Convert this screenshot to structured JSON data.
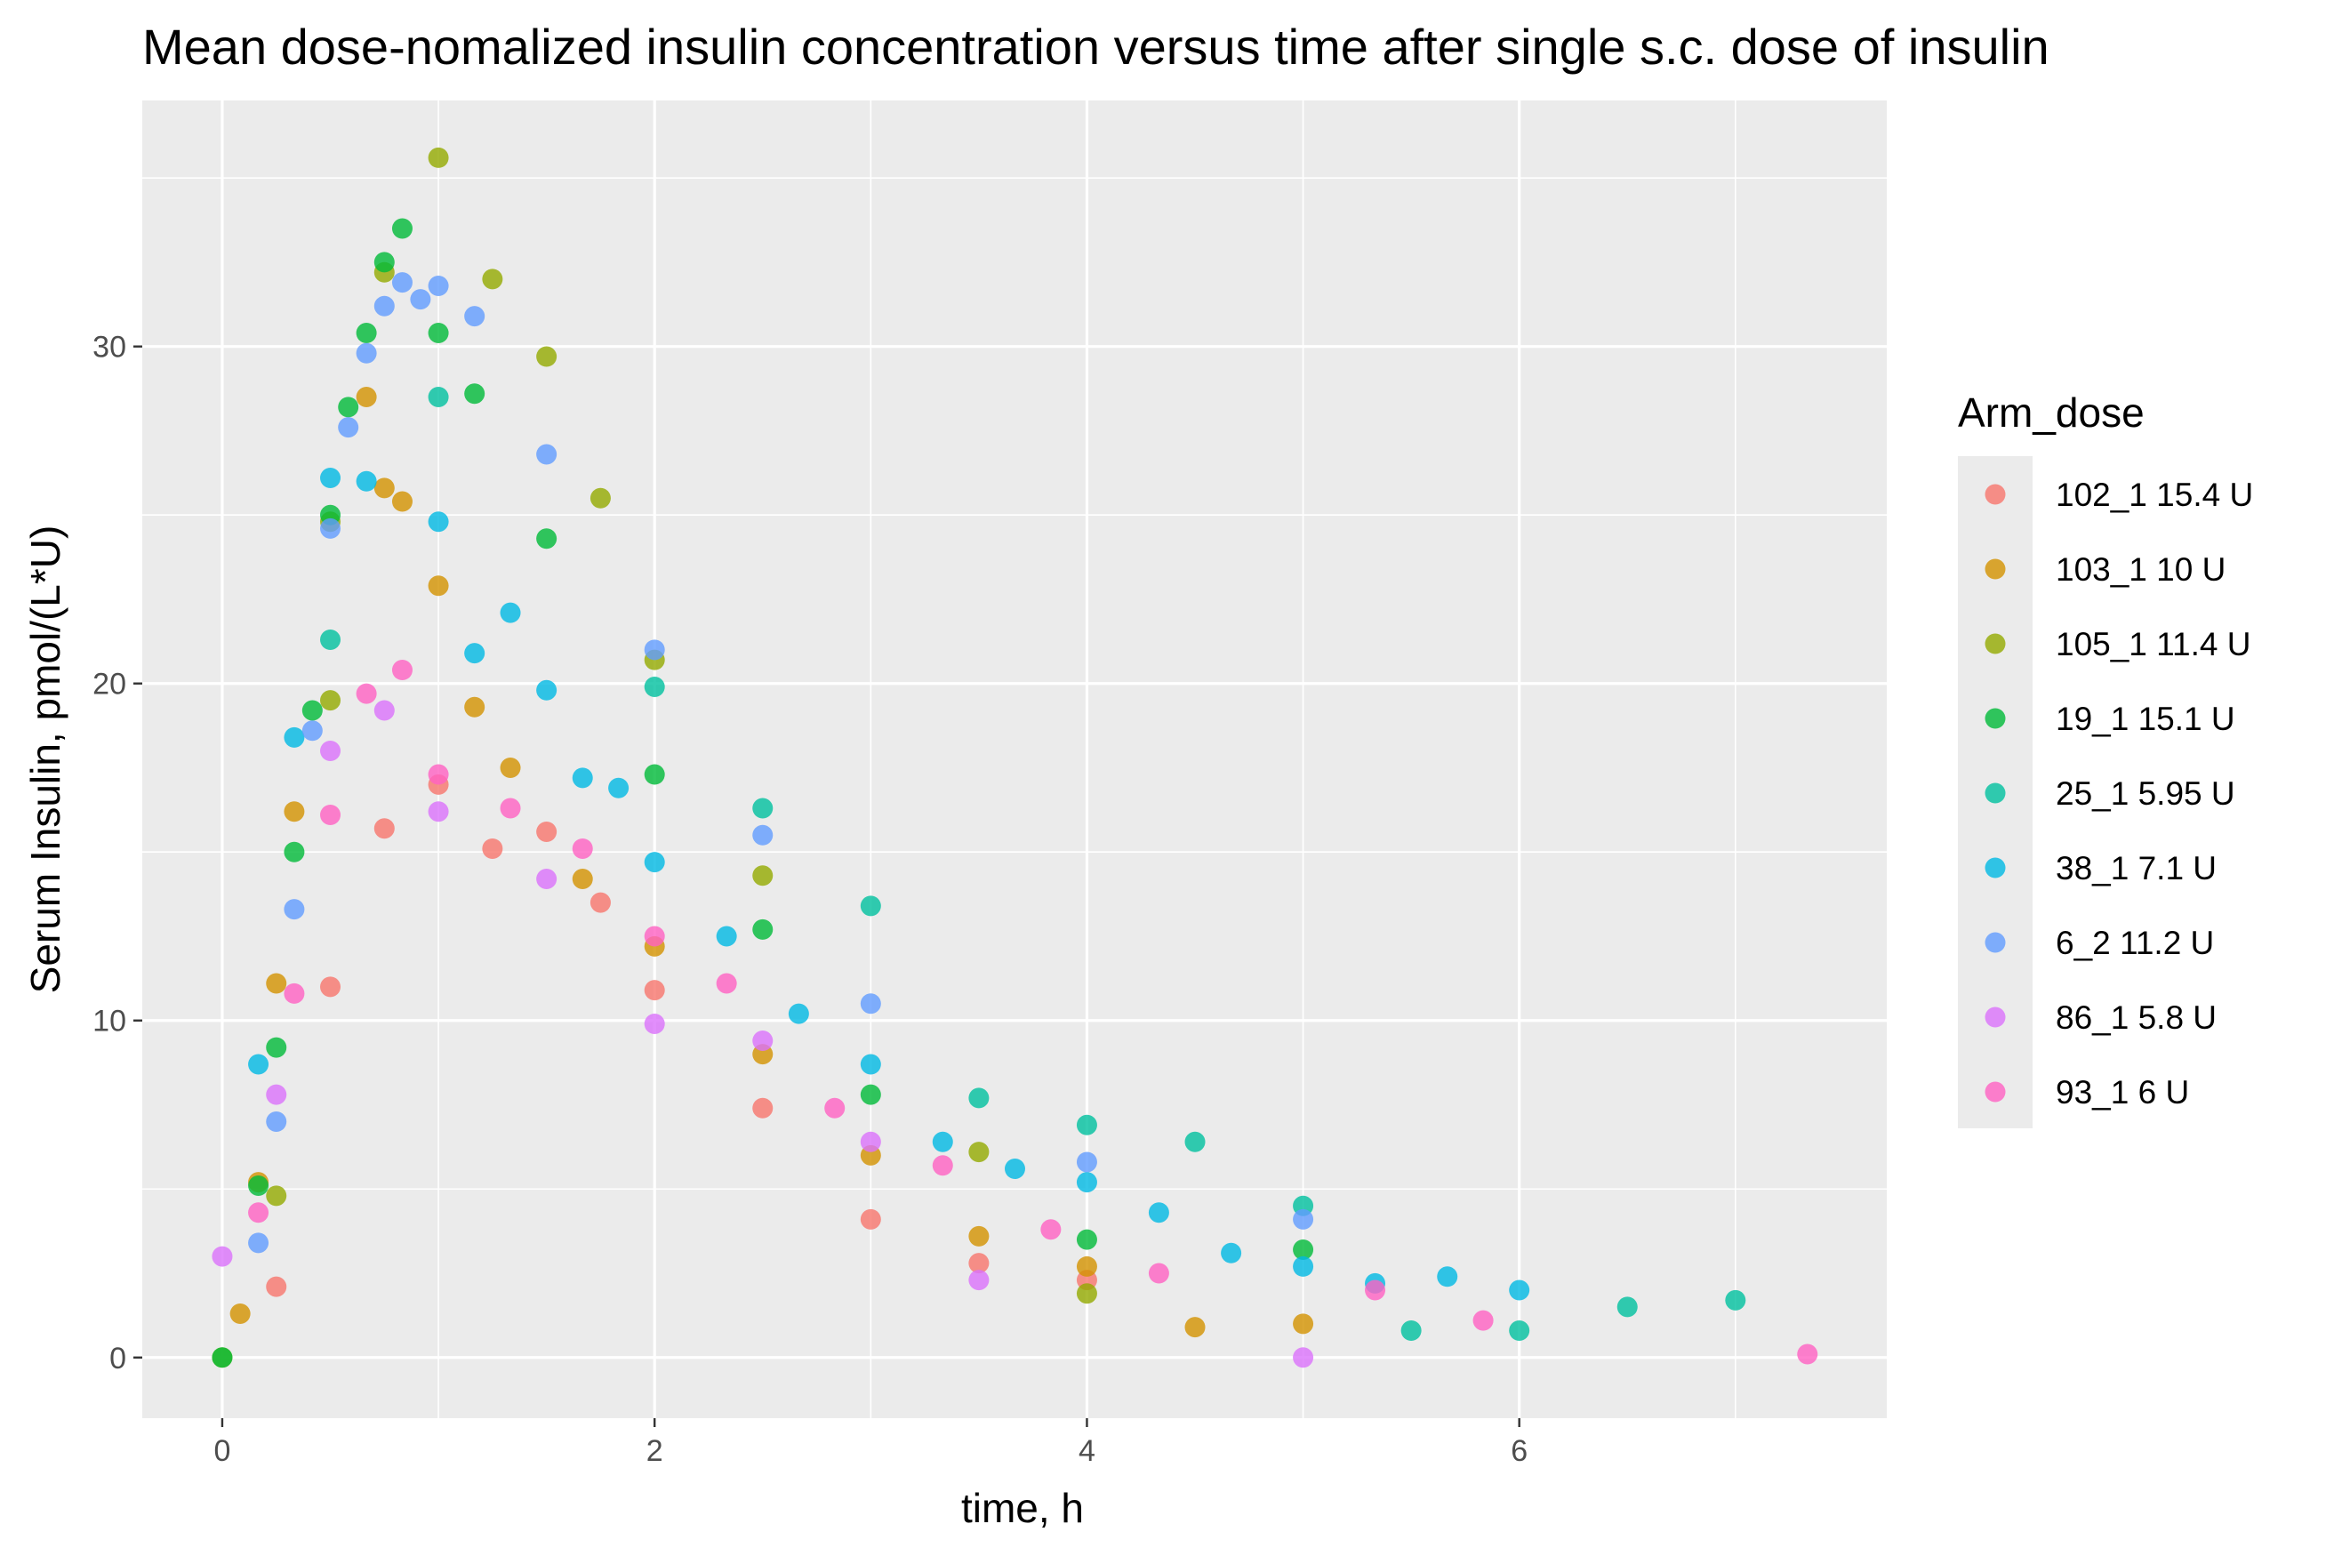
{
  "chart_data": {
    "type": "scatter",
    "title": "Mean dose-nomalized insulin concentration versus time after single s.c. dose of insulin",
    "xlabel": "time, h",
    "ylabel": "Serum Insulin, pmol/(L*U)",
    "xlim": [
      -0.37,
      7.7
    ],
    "ylim": [
      -1.8,
      37.3
    ],
    "x_ticks": [
      0,
      2,
      4,
      6
    ],
    "y_ticks": [
      0,
      10,
      20,
      30
    ],
    "x_tick_labels": [
      "0",
      "2",
      "4",
      "6"
    ],
    "y_tick_labels": [
      "0",
      "10",
      "20",
      "30"
    ],
    "grid": true,
    "legend_title": "Arm_dose",
    "legend_position": "right",
    "series": [
      {
        "name": "102_1 15.4 U",
        "color": "#F8766D",
        "points": [
          [
            0.25,
            2.1
          ],
          [
            0.5,
            11
          ],
          [
            0.75,
            15.7
          ],
          [
            1,
            17
          ],
          [
            1.25,
            15.1
          ],
          [
            1.5,
            15.6
          ],
          [
            1.75,
            13.5
          ],
          [
            2,
            10.9
          ],
          [
            2.5,
            7.4
          ],
          [
            3,
            4.1
          ],
          [
            3.5,
            2.8
          ],
          [
            4,
            2.3
          ]
        ]
      },
      {
        "name": "103_1 10 U",
        "color": "#D39200",
        "points": [
          [
            0.083,
            1.3
          ],
          [
            0.167,
            5.2
          ],
          [
            0.25,
            11.1
          ],
          [
            0.333,
            16.2
          ],
          [
            0.667,
            28.5
          ],
          [
            0.75,
            25.8
          ],
          [
            0.833,
            25.4
          ],
          [
            1,
            22.9
          ],
          [
            1.167,
            19.3
          ],
          [
            1.333,
            17.5
          ],
          [
            1.667,
            14.2
          ],
          [
            2,
            12.2
          ],
          [
            2.5,
            9
          ],
          [
            3,
            6
          ],
          [
            3.5,
            3.6
          ],
          [
            4,
            2.7
          ],
          [
            4.5,
            0.9
          ],
          [
            5,
            1
          ]
        ]
      },
      {
        "name": "105_1 11.4 U",
        "color": "#93AA00",
        "points": [
          [
            0,
            0
          ],
          [
            0.25,
            4.8
          ],
          [
            0.5,
            19.5
          ],
          [
            0.5,
            24.8
          ],
          [
            0.75,
            32.2
          ],
          [
            1,
            35.6
          ],
          [
            1.25,
            32
          ],
          [
            1.5,
            29.7
          ],
          [
            1.75,
            25.5
          ],
          [
            2,
            20.7
          ],
          [
            2.5,
            14.3
          ],
          [
            3.5,
            6.1
          ],
          [
            4,
            1.9
          ]
        ]
      },
      {
        "name": "19_1 15.1 U",
        "color": "#00BA38",
        "points": [
          [
            0,
            0
          ],
          [
            0.167,
            5.1
          ],
          [
            0.25,
            9.2
          ],
          [
            0.333,
            15
          ],
          [
            0.417,
            19.2
          ],
          [
            0.5,
            25
          ],
          [
            0.583,
            28.2
          ],
          [
            0.667,
            30.4
          ],
          [
            0.75,
            32.5
          ],
          [
            0.833,
            33.5
          ],
          [
            1,
            30.4
          ],
          [
            1.167,
            28.6
          ],
          [
            1.5,
            24.3
          ],
          [
            2,
            17.3
          ],
          [
            2.5,
            12.7
          ],
          [
            3,
            7.8
          ],
          [
            4,
            3.5
          ],
          [
            5,
            3.2
          ]
        ]
      },
      {
        "name": "25_1 5.95 U",
        "color": "#00C19F",
        "points": [
          [
            0.5,
            21.3
          ],
          [
            1,
            28.5
          ],
          [
            2,
            19.9
          ],
          [
            2.5,
            16.3
          ],
          [
            3,
            13.4
          ],
          [
            3.5,
            7.7
          ],
          [
            4,
            6.9
          ],
          [
            4.5,
            6.4
          ],
          [
            5,
            4.5
          ],
          [
            5.5,
            0.8
          ],
          [
            6,
            0.8
          ],
          [
            6.5,
            1.5
          ],
          [
            7,
            1.7
          ]
        ]
      },
      {
        "name": "38_1 7.1 U",
        "color": "#00B9E3",
        "points": [
          [
            0.167,
            8.7
          ],
          [
            0.333,
            18.4
          ],
          [
            0.5,
            26.1
          ],
          [
            0.667,
            26
          ],
          [
            1,
            24.8
          ],
          [
            1.167,
            20.9
          ],
          [
            1.333,
            22.1
          ],
          [
            1.5,
            19.8
          ],
          [
            1.667,
            17.2
          ],
          [
            1.833,
            16.9
          ],
          [
            2,
            14.7
          ],
          [
            2.333,
            12.5
          ],
          [
            2.667,
            10.2
          ],
          [
            3,
            8.7
          ],
          [
            3.333,
            6.4
          ],
          [
            3.667,
            5.6
          ],
          [
            4,
            5.2
          ],
          [
            4.333,
            4.3
          ],
          [
            4.667,
            3.1
          ],
          [
            5,
            2.7
          ],
          [
            5.333,
            2.2
          ],
          [
            5.667,
            2.4
          ],
          [
            6,
            2
          ]
        ]
      },
      {
        "name": "6_2 11.2 U",
        "color": "#619CFF",
        "points": [
          [
            0.167,
            3.4
          ],
          [
            0.25,
            7
          ],
          [
            0.333,
            13.3
          ],
          [
            0.417,
            18.6
          ],
          [
            0.5,
            24.6
          ],
          [
            0.583,
            27.6
          ],
          [
            0.667,
            29.8
          ],
          [
            0.75,
            31.2
          ],
          [
            0.833,
            31.9
          ],
          [
            0.917,
            31.4
          ],
          [
            1,
            31.8
          ],
          [
            1.167,
            30.9
          ],
          [
            1.5,
            26.8
          ],
          [
            2,
            21
          ],
          [
            2.5,
            15.5
          ],
          [
            3,
            10.5
          ],
          [
            4,
            5.8
          ],
          [
            5,
            4.1
          ]
        ]
      },
      {
        "name": "86_1 5.8 U",
        "color": "#DB72FB",
        "points": [
          [
            0,
            3
          ],
          [
            0.25,
            7.8
          ],
          [
            0.5,
            18
          ],
          [
            0.75,
            19.2
          ],
          [
            1,
            16.2
          ],
          [
            1.5,
            14.2
          ],
          [
            2,
            9.9
          ],
          [
            2.5,
            9.4
          ],
          [
            3,
            6.4
          ],
          [
            3.5,
            2.3
          ],
          [
            5,
            0
          ]
        ]
      },
      {
        "name": "93_1 6 U",
        "color": "#FF61C3",
        "points": [
          [
            0.167,
            4.3
          ],
          [
            0.333,
            10.8
          ],
          [
            0.5,
            16.1
          ],
          [
            0.667,
            19.7
          ],
          [
            0.833,
            20.4
          ],
          [
            1,
            17.3
          ],
          [
            1.333,
            16.3
          ],
          [
            1.667,
            15.1
          ],
          [
            2,
            12.5
          ],
          [
            2.333,
            11.1
          ],
          [
            2.833,
            7.4
          ],
          [
            3.333,
            5.7
          ],
          [
            3.833,
            3.8
          ],
          [
            4.333,
            2.5
          ],
          [
            5.333,
            2
          ],
          [
            5.833,
            1.1
          ],
          [
            7.333,
            0.1
          ]
        ]
      }
    ]
  }
}
